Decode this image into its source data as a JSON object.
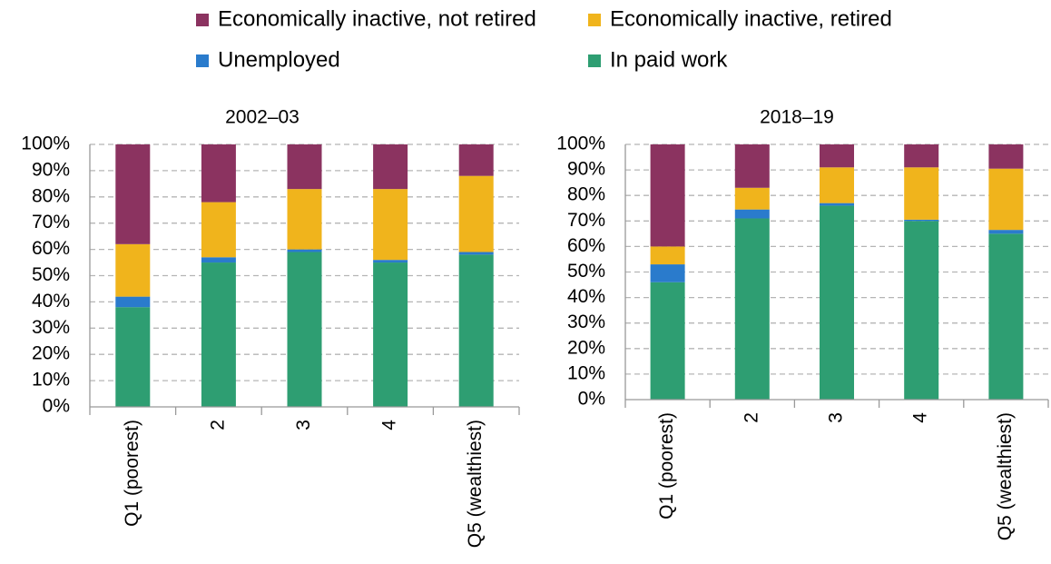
{
  "legend": [
    {
      "name": "In paid work",
      "color": "#2e9e72"
    },
    {
      "name": "Unemployed",
      "color": "#2a7bcc"
    },
    {
      "name": "Economically inactive, retired",
      "color": "#f0b41c"
    },
    {
      "name": "Economically inactive, not retired",
      "color": "#8b3360"
    }
  ],
  "chart_data": [
    {
      "type": "bar",
      "stacked": true,
      "title": "2002–03",
      "categories": [
        "Q1 (poorest)",
        "2",
        "3",
        "4",
        "Q5 (wealthiest)"
      ],
      "series": [
        {
          "values": [
            38,
            55,
            59,
            55,
            58
          ]
        },
        {
          "values": [
            4,
            2,
            1,
            1,
            1
          ]
        },
        {
          "values": [
            20,
            21,
            23,
            27,
            29
          ]
        },
        {
          "values": [
            38,
            22,
            17,
            17,
            12
          ]
        }
      ],
      "ylim": [
        0,
        100
      ],
      "yticks": [
        {
          "value": 0,
          "label": "0%"
        },
        {
          "value": 10,
          "label": "10%"
        },
        {
          "value": 20,
          "label": "20%"
        },
        {
          "value": 30,
          "label": "30%"
        },
        {
          "value": 40,
          "label": "40%"
        },
        {
          "value": 50,
          "label": "50%"
        },
        {
          "value": 60,
          "label": "60%"
        },
        {
          "value": 70,
          "label": "70%"
        },
        {
          "value": 80,
          "label": "80%"
        },
        {
          "value": 90,
          "label": "90%"
        },
        {
          "value": 100,
          "label": "100%"
        }
      ],
      "grid": true
    },
    {
      "type": "bar",
      "stacked": true,
      "title": "2018–19",
      "categories": [
        "Q1 (poorest)",
        "2",
        "3",
        "4",
        "Q5 (wealthiest)"
      ],
      "series": [
        {
          "values": [
            46,
            71,
            76,
            70,
            65
          ]
        },
        {
          "values": [
            7,
            3.5,
            1,
            0.5,
            1.5
          ]
        },
        {
          "values": [
            7,
            8.5,
            14,
            20.5,
            24
          ]
        },
        {
          "values": [
            40,
            17,
            9,
            9,
            9.5
          ]
        }
      ],
      "ylim": [
        0,
        100
      ],
      "yticks": [
        {
          "value": 0,
          "label": "0%"
        },
        {
          "value": 10,
          "label": "10%"
        },
        {
          "value": 20,
          "label": "20%"
        },
        {
          "value": 30,
          "label": "30%"
        },
        {
          "value": 40,
          "label": "40%"
        },
        {
          "value": 50,
          "label": "50%"
        },
        {
          "value": 60,
          "label": "60%"
        },
        {
          "value": 70,
          "label": "70%"
        },
        {
          "value": 80,
          "label": "80%"
        },
        {
          "value": 90,
          "label": "90%"
        },
        {
          "value": 100,
          "label": "100%"
        }
      ],
      "grid": true
    }
  ]
}
